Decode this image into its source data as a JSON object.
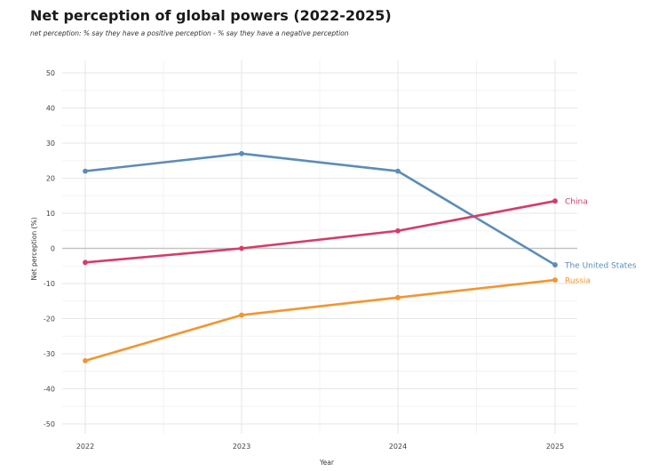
{
  "chart_data": {
    "type": "line",
    "title": "Net perception of global powers (2022-2025)",
    "subtitle": "net perception: % say they have a positive perception - % say they have a negative perception",
    "xlabel": "Year",
    "ylabel": "Net perception (%)",
    "x": [
      2022,
      2023,
      2024,
      2025
    ],
    "xticks": [
      "2022",
      "2023",
      "2024",
      "2025"
    ],
    "ylim": [
      -50,
      50
    ],
    "yticks": [
      -50,
      -40,
      -30,
      -20,
      -10,
      0,
      10,
      20,
      30,
      40,
      50
    ],
    "grid": true,
    "series": [
      {
        "name": "The United States",
        "color": "#5b8db8",
        "values": [
          22,
          27,
          22,
          -4.7
        ]
      },
      {
        "name": "China",
        "color": "#d63c67",
        "values": [
          -4,
          0,
          5,
          13.5
        ]
      },
      {
        "name": "Russia",
        "color": "#f39530",
        "values": [
          -32,
          -19,
          -14,
          -9
        ]
      }
    ]
  }
}
